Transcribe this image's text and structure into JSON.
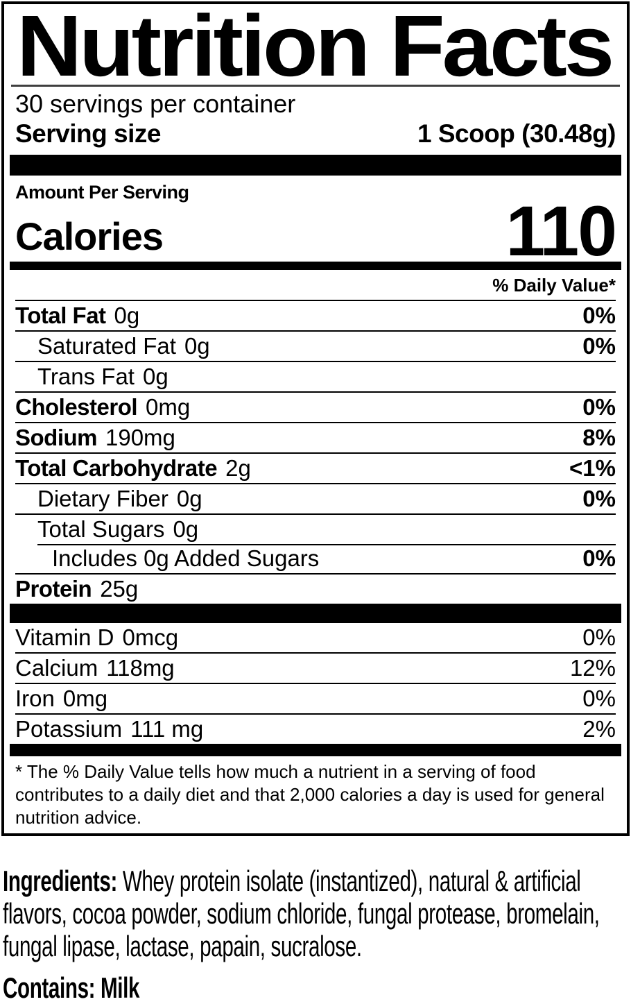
{
  "colors": {
    "ink": "#000000",
    "paper": "#ffffff",
    "rule_gray": "#3f3f3f"
  },
  "label": {
    "title": "Nutrition Facts",
    "servings_per_container": "30 servings per container",
    "serving_size": {
      "label": "Serving size",
      "value": "1 Scoop (30.48g)"
    },
    "amount_per_serving": "Amount Per Serving",
    "calories": {
      "label": "Calories",
      "value": "110"
    },
    "daily_value_header": "% Daily Value*",
    "nutrients": [
      {
        "label": "Total Fat",
        "amount": "0g",
        "dv": "0%",
        "bold": true,
        "indent": 0
      },
      {
        "label": "Saturated Fat",
        "amount": "0g",
        "dv": "0%",
        "bold": false,
        "indent": 1
      },
      {
        "label": "Trans Fat",
        "amount": "0g",
        "dv": "",
        "bold": false,
        "indent": 1
      },
      {
        "label": "Cholesterol",
        "amount": "0mg",
        "dv": "0%",
        "bold": true,
        "indent": 0
      },
      {
        "label": "Sodium",
        "amount": "190mg",
        "dv": "8%",
        "bold": true,
        "indent": 0
      },
      {
        "label": "Total Carbohydrate",
        "amount": "2g",
        "dv": "<1%",
        "bold": true,
        "indent": 0
      },
      {
        "label": "Dietary Fiber",
        "amount": "0g",
        "dv": "0%",
        "bold": false,
        "indent": 1
      },
      {
        "label": "Total Sugars",
        "amount": "0g",
        "dv": "",
        "bold": false,
        "indent": 1
      },
      {
        "label": "Includes 0g Added Sugars",
        "amount": "",
        "dv": "0%",
        "bold": false,
        "indent": 2,
        "sep_indent": true
      },
      {
        "label": "Protein",
        "amount": "25g",
        "dv": "",
        "bold": true,
        "indent": 0
      }
    ],
    "micronutrients": [
      {
        "label": "Vitamin D",
        "amount": "0mcg",
        "dv": "0%"
      },
      {
        "label": "Calcium",
        "amount": "118mg",
        "dv": "12%"
      },
      {
        "label": "Iron",
        "amount": "0mg",
        "dv": "0%"
      },
      {
        "label": "Potassium",
        "amount": "111 mg",
        "dv": "2%"
      }
    ],
    "footnote": "* The % Daily Value tells how much a nutrient in a serving of food contributes to a daily diet and that 2,000 calories a day is used for general nutrition advice.",
    "ingredients": {
      "label": "Ingredients:",
      "text": " Whey protein isolate (instantized), natural & artificial flavors, cocoa powder, sodium chloride, fungal protease, bromelain, fungal lipase, lactase, papain, sucralose."
    },
    "contains": {
      "label": "Contains:",
      "text": " Milk"
    }
  }
}
